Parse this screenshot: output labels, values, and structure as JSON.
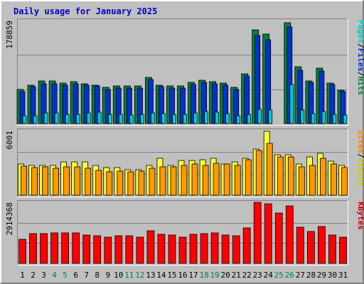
{
  "chart_data": {
    "type": "bar",
    "title": "Daily usage for January 2025",
    "x": [
      "1",
      "2",
      "3",
      "4",
      "5",
      "6",
      "7",
      "8",
      "9",
      "10",
      "11",
      "12",
      "13",
      "14",
      "15",
      "16",
      "17",
      "18",
      "19",
      "20",
      "21",
      "22",
      "23",
      "24",
      "25",
      "26",
      "27",
      "28",
      "29",
      "30",
      "31"
    ],
    "weekend_days": [
      "4",
      "5",
      "11",
      "12",
      "18",
      "19",
      "25",
      "26"
    ],
    "panels": [
      {
        "ymax_label": "178859",
        "ymax": 178859,
        "side_label": [
          {
            "text": "Pages",
            "color": "#00cccc"
          },
          {
            "text": "/",
            "color": "#000000"
          },
          {
            "text": "Files",
            "color": "#0033cc"
          },
          {
            "text": "/",
            "color": "#000000"
          },
          {
            "text": "Hits",
            "color": "#008040"
          }
        ],
        "series": [
          {
            "name": "Hits",
            "color": "#008040",
            "values": [
              59500,
              67200,
              73700,
              73700,
              70800,
              73100,
              69200,
              67200,
              62700,
              65500,
              65500,
              65500,
              80100,
              66800,
              65500,
              65500,
              71500,
              75000,
              72800,
              70800,
              63500,
              86600,
              162500,
              155500,
              0,
              175000,
              99000,
              74500,
              96500,
              70200,
              58200
            ]
          },
          {
            "name": "Files",
            "color": "#0033cc",
            "values": [
              55800,
              64000,
              69500,
              69500,
              66500,
              69500,
              66500,
              64800,
              59700,
              61800,
              61800,
              61800,
              76100,
              63600,
              61800,
              61800,
              68200,
              71500,
              69500,
              66500,
              59700,
              82200,
              153000,
              146000,
              0,
              168000,
              93000,
              71000,
              91400,
              67600,
              55800
            ]
          },
          {
            "name": "Pages",
            "color": "#00cccc",
            "values": [
              13200,
              13600,
              18500,
              18500,
              16400,
              15800,
              18800,
              19900,
              15800,
              15800,
              15400,
              15800,
              18800,
              17800,
              15800,
              15800,
              18800,
              20600,
              19900,
              17800,
              13200,
              15800,
              24400,
              23400,
              0,
              68400,
              23400,
              17800,
              20600,
              15800,
              14500
            ]
          }
        ]
      },
      {
        "ymax_label": "6001",
        "ymax": 6001,
        "side_label": [
          {
            "text": "Sites",
            "color": "#ff8000"
          },
          {
            "text": "/",
            "color": "#000000"
          },
          {
            "text": "Visits",
            "color": "#cccc00"
          }
        ],
        "series": [
          {
            "name": "Visits",
            "color": "#ffff33",
            "values": [
              2870,
              2740,
              2740,
              2740,
              3070,
              3070,
              3070,
              2740,
              2550,
              2550,
              2350,
              2350,
              2740,
              3460,
              2740,
              3200,
              3200,
              3270,
              3460,
              2870,
              3070,
              3400,
              4310,
              5960,
              3730,
              3730,
              2870,
              3590,
              3920,
              3140,
              2740
            ]
          },
          {
            "name": "Sites",
            "color": "#ff9900",
            "values": [
              2680,
              2550,
              2610,
              2480,
              2610,
              2610,
              2480,
              2290,
              2170,
              2230,
              2170,
              2230,
              2480,
              2610,
              2610,
              2800,
              2870,
              2740,
              3000,
              2870,
              2740,
              3330,
              4140,
              4830,
              3590,
              3590,
              2610,
              2800,
              3400,
              2870,
              2550
            ]
          }
        ]
      },
      {
        "ymax_label": "2914368",
        "ymax": 2914368,
        "side_label": [
          {
            "text": "KBytes",
            "color": "#cc0000"
          }
        ],
        "series": [
          {
            "name": "KBytes",
            "color": "#ff0000",
            "values": [
              1160000,
              1430000,
              1430000,
              1460000,
              1460000,
              1460000,
              1340000,
              1310000,
              1240000,
              1310000,
              1310000,
              1270000,
              1570000,
              1400000,
              1370000,
              1270000,
              1400000,
              1430000,
              1460000,
              1370000,
              1310000,
              1710000,
              2914000,
              2850000,
              2420000,
              2730000,
              1730000,
              1510000,
              1760000,
              1370000,
              1240000
            ]
          }
        ]
      }
    ]
  }
}
